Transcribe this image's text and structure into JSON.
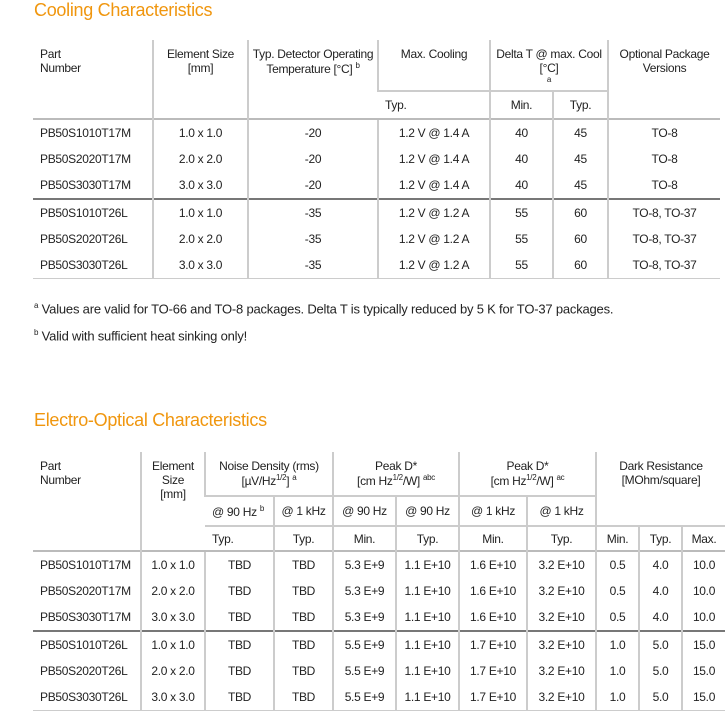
{
  "cooling": {
    "title": "Cooling Characteristics",
    "headers": {
      "part": "Part Number",
      "size": "Element Size [mm]",
      "temp": "Typ. Detector Operating Temperature [°C]",
      "temp_sup": "b",
      "maxcool": "Max. Cooling",
      "deltat": "Delta T @ max. Cool [°C]",
      "deltat_sup": "a",
      "pkg": "Optional Package Versions",
      "typ": "Typ.",
      "min": "Min."
    },
    "rows": [
      [
        "PB50S1010T17M",
        "1.0 x 1.0",
        "-20",
        "1.2 V @ 1.4 A",
        "40",
        "45",
        "TO-8"
      ],
      [
        "PB50S2020T17M",
        "2.0 x 2.0",
        "-20",
        "1.2 V @ 1.4 A",
        "40",
        "45",
        "TO-8"
      ],
      [
        "PB50S3030T17M",
        "3.0 x 3.0",
        "-20",
        "1.2 V @ 1.4 A",
        "40",
        "45",
        "TO-8"
      ],
      [
        "PB50S1010T26L",
        "1.0 x 1.0",
        "-35",
        "1.2 V @ 1.2 A",
        "55",
        "60",
        "TO-8, TO-37"
      ],
      [
        "PB50S2020T26L",
        "2.0 x 2.0",
        "-35",
        "1.2 V @ 1.2 A",
        "55",
        "60",
        "TO-8, TO-37"
      ],
      [
        "PB50S3030T26L",
        "3.0 x 3.0",
        "-35",
        "1.2 V @ 1.2 A",
        "55",
        "60",
        "TO-8, TO-37"
      ]
    ],
    "footnotes": [
      {
        "mark": "a",
        "text": "Values are valid for TO-66 and TO-8 packages. Delta T is typically reduced by 5 K for TO-37 packages."
      },
      {
        "mark": "b",
        "text": "Valid with sufficient heat sinking only!"
      }
    ]
  },
  "electro": {
    "title": "Electro-Optical Characteristics",
    "headers": {
      "part": "Part Number",
      "size": "Element Size [mm]",
      "noise": "Noise Density (rms)",
      "noise_unit": "[µV/Hz",
      "noise_sup": "a",
      "peak1": "Peak D*",
      "peak1_sup": "abc",
      "peak2": "Peak D*",
      "peak2_sup": "ac",
      "peak_unit": "[cm Hz",
      "dark": "Dark Resistance [MOhm/square]",
      "f90": "@ 90 Hz",
      "f90_sup": "b",
      "f1k": "@ 1 kHz",
      "typ": "Typ.",
      "min": "Min.",
      "max": "Max."
    },
    "rows": [
      [
        "PB50S1010T17M",
        "1.0 x 1.0",
        "TBD",
        "TBD",
        "5.3 E+9",
        "1.1 E+10",
        "1.6 E+10",
        "3.2 E+10",
        "0.5",
        "4.0",
        "10.0"
      ],
      [
        "PB50S2020T17M",
        "2.0 x 2.0",
        "TBD",
        "TBD",
        "5.3 E+9",
        "1.1 E+10",
        "1.6 E+10",
        "3.2 E+10",
        "0.5",
        "4.0",
        "10.0"
      ],
      [
        "PB50S3030T17M",
        "3.0 x 3.0",
        "TBD",
        "TBD",
        "5.3 E+9",
        "1.1 E+10",
        "1.6 E+10",
        "3.2 E+10",
        "0.5",
        "4.0",
        "10.0"
      ],
      [
        "PB50S1010T26L",
        "1.0 x 1.0",
        "TBD",
        "TBD",
        "5.5 E+9",
        "1.1 E+10",
        "1.7 E+10",
        "3.2 E+10",
        "1.0",
        "5.0",
        "15.0"
      ],
      [
        "PB50S2020T26L",
        "2.0 x 2.0",
        "TBD",
        "TBD",
        "5.5 E+9",
        "1.1 E+10",
        "1.7 E+10",
        "3.2 E+10",
        "1.0",
        "5.0",
        "15.0"
      ],
      [
        "PB50S3030T26L",
        "3.0 x 3.0",
        "TBD",
        "TBD",
        "5.5 E+9",
        "1.1 E+10",
        "1.7 E+10",
        "3.2 E+10",
        "1.0",
        "5.0",
        "15.0"
      ]
    ]
  }
}
